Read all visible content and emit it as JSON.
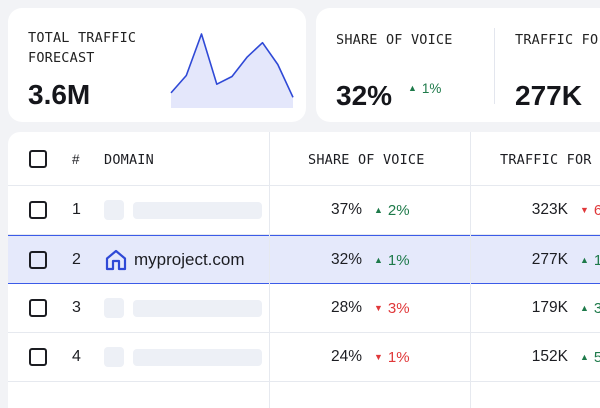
{
  "cards": {
    "traffic": {
      "label": "TOTAL TRAFFIC FORECAST",
      "value": "3.6M",
      "sparkline": [
        12,
        28,
        66,
        20,
        27,
        45,
        58,
        38,
        8
      ]
    },
    "sov": {
      "share_label": "SHARE OF VOICE",
      "share_value": "32%",
      "share_delta": "1%",
      "share_delta_dir": "up",
      "traffic_label": "TRAFFIC FO",
      "traffic_value": "277K"
    }
  },
  "table": {
    "headers": {
      "number": "#",
      "domain": "DOMAIN",
      "share": "SHARE OF VOICE",
      "traffic": "TRAFFIC FOR"
    },
    "rows": [
      {
        "num": "1",
        "domain": "",
        "share": "37%",
        "share_delta": "2%",
        "share_dir": "up",
        "traffic": "323K",
        "traffic_delta": "6",
        "traffic_dir": "down"
      },
      {
        "num": "2",
        "domain": "myproject.com",
        "share": "32%",
        "share_delta": "1%",
        "share_dir": "up",
        "traffic": "277K",
        "traffic_delta": "1",
        "traffic_dir": "up"
      },
      {
        "num": "3",
        "domain": "",
        "share": "28%",
        "share_delta": "3%",
        "share_dir": "down",
        "traffic": "179K",
        "traffic_delta": "3",
        "traffic_dir": "up"
      },
      {
        "num": "4",
        "domain": "",
        "share": "24%",
        "share_delta": "1%",
        "share_dir": "down",
        "traffic": "152K",
        "traffic_delta": "5",
        "traffic_dir": "up"
      }
    ]
  },
  "colors": {
    "accent": "#3b5be8",
    "up": "#1e7a4a",
    "down": "#e0383a",
    "sparkline_fill": "#e4e7fb",
    "sparkline_stroke": "#2f49d6"
  },
  "icons": {
    "up": "triangle-up-icon",
    "down": "triangle-down-icon",
    "domain": "house-logo-icon"
  }
}
